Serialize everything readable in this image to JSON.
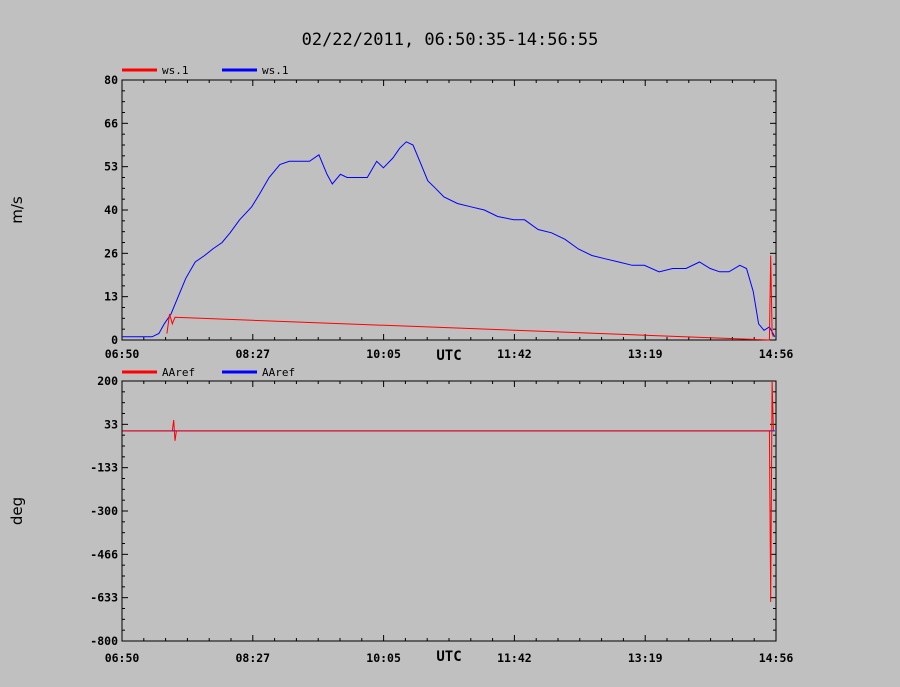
{
  "title": "02/22/2011, 06:50:35-14:56:55",
  "colors": {
    "background": "#c0c0c0",
    "red": "#ff0000",
    "blue": "#0000ff",
    "axis": "#000000"
  },
  "chart_data": [
    {
      "type": "line",
      "ylabel": "m/s",
      "xlabel": "UTC",
      "ylim": [
        0,
        80
      ],
      "yticks": [
        "0",
        "13",
        "26",
        "40",
        "53",
        "66",
        "80"
      ],
      "xticks": [
        "06:50",
        "08:27",
        "10:05",
        "11:42",
        "13:19",
        "14:56"
      ],
      "xlim_minutes": [
        410.58,
        896.92
      ],
      "legend": [
        {
          "name": "ws.1",
          "color": "#ff0000"
        },
        {
          "name": "ws.1",
          "color": "#0000ff"
        }
      ],
      "series": [
        {
          "color": "#0000ff",
          "x": [
            "06:51",
            "07:00",
            "07:08",
            "07:13",
            "07:18",
            "07:22",
            "07:27",
            "07:32",
            "07:38",
            "07:45",
            "07:52",
            "07:58",
            "08:05",
            "08:11",
            "08:18",
            "08:27",
            "08:33",
            "08:40",
            "08:48",
            "08:55",
            "09:02",
            "09:10",
            "09:17",
            "09:23",
            "09:27",
            "09:33",
            "09:38",
            "09:45",
            "09:53",
            "10:00",
            "10:05",
            "10:12",
            "10:17",
            "10:22",
            "10:27",
            "10:32",
            "10:38",
            "10:43",
            "10:50",
            "11:00",
            "11:10",
            "11:20",
            "11:30",
            "11:42",
            "11:50",
            "12:00",
            "12:10",
            "12:20",
            "12:30",
            "12:40",
            "12:50",
            "13:00",
            "13:10",
            "13:19",
            "13:30",
            "13:40",
            "13:50",
            "14:00",
            "14:08",
            "14:15",
            "14:22",
            "14:30",
            "14:35",
            "14:40",
            "14:44",
            "14:48",
            "14:52",
            "14:56"
          ],
          "values": [
            1,
            1,
            1,
            1,
            2,
            5,
            8,
            13,
            19,
            24,
            26,
            28,
            30,
            33,
            37,
            41,
            45,
            50,
            54,
            55,
            55,
            55,
            57,
            51,
            48,
            51,
            50,
            50,
            50,
            55,
            53,
            56,
            59,
            61,
            60,
            55,
            49,
            47,
            44,
            42,
            41,
            40,
            38,
            37,
            37,
            34,
            33,
            31,
            28,
            26,
            25,
            24,
            23,
            23,
            21,
            22,
            22,
            24,
            22,
            21,
            21,
            23,
            22,
            15,
            5,
            3,
            4,
            1
          ]
        },
        {
          "color": "#ff0000",
          "x": [
            "07:24",
            "07:26",
            "07:28",
            "07:30",
            "14:52",
            "14:53",
            "14:54",
            "14:55"
          ],
          "values": [
            2,
            8,
            5,
            7,
            0,
            26,
            2,
            1
          ]
        }
      ]
    },
    {
      "type": "line",
      "ylabel": "deg",
      "xlabel": "UTC",
      "ylim": [
        -800,
        200
      ],
      "yticks": [
        "-800",
        "-633",
        "-466",
        "-300",
        "-133",
        "33",
        "200"
      ],
      "xticks": [
        "06:50",
        "08:27",
        "10:05",
        "11:42",
        "13:19",
        "14:56"
      ],
      "xlim_minutes": [
        410.58,
        896.92
      ],
      "legend": [
        {
          "name": "AAref",
          "color": "#ff0000"
        },
        {
          "name": "AAref",
          "color": "#0000ff"
        }
      ],
      "series": [
        {
          "color": "#0000ff",
          "x": [
            "06:51",
            "14:56"
          ],
          "values": [
            8,
            8
          ]
        },
        {
          "color": "#ff0000",
          "x": [
            "06:51",
            "07:28",
            "07:29",
            "07:30",
            "07:31",
            "14:52",
            "14:53",
            "14:54",
            "14:55"
          ],
          "values": [
            8,
            8,
            50,
            -30,
            8,
            8,
            -650,
            200,
            8
          ]
        }
      ]
    }
  ]
}
